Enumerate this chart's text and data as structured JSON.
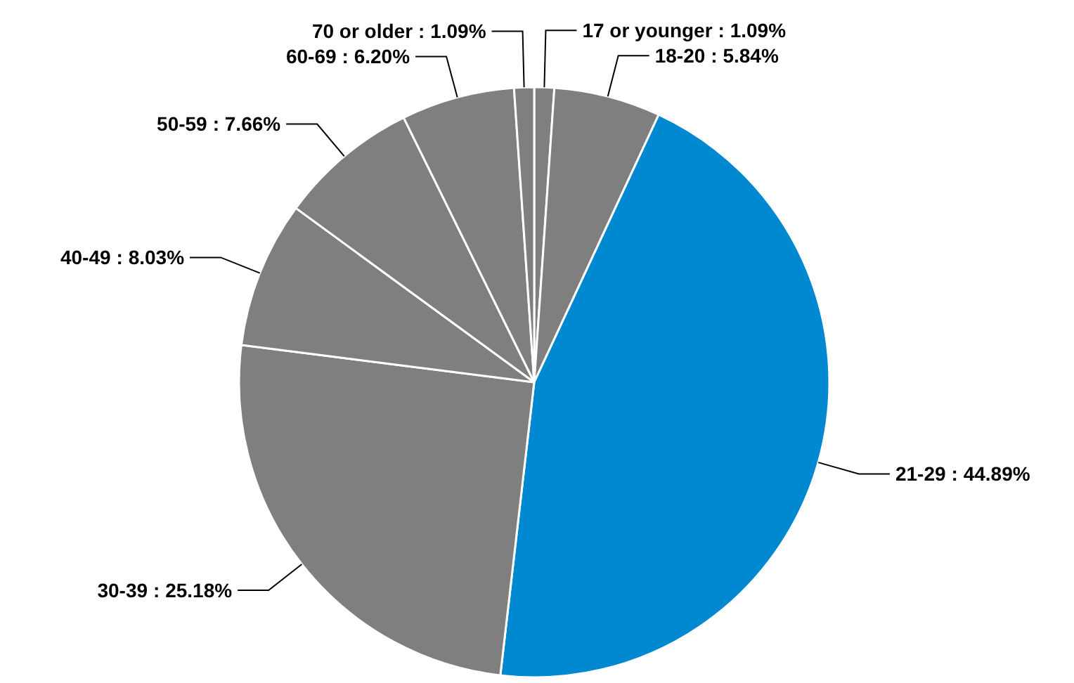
{
  "chart_data": {
    "type": "pie",
    "categories": [
      "17 or younger",
      "18-20",
      "21-29",
      "30-39",
      "40-49",
      "50-59",
      "60-69",
      "70 or older"
    ],
    "values": [
      1.09,
      5.84,
      44.89,
      25.18,
      8.03,
      7.66,
      6.2,
      1.09
    ],
    "colors": [
      "#7f7f7f",
      "#7f7f7f",
      "#0088d1",
      "#7f7f7f",
      "#7f7f7f",
      "#7f7f7f",
      "#7f7f7f",
      "#7f7f7f"
    ],
    "value_labels": [
      ": 1.09%",
      ": 5.84%",
      ": 44.89%",
      ": 25.18%",
      ": 8.03%",
      ": 7.66%",
      ": 6.20%",
      ": 1.09%"
    ]
  }
}
